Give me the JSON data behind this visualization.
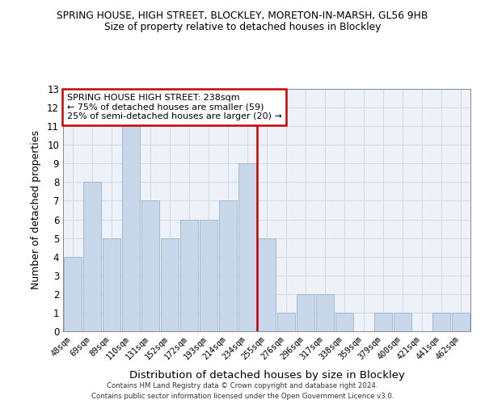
{
  "title_line1": "SPRING HOUSE, HIGH STREET, BLOCKLEY, MORETON-IN-MARSH, GL56 9HB",
  "title_line2": "Size of property relative to detached houses in Blockley",
  "xlabel": "Distribution of detached houses by size in Blockley",
  "ylabel": "Number of detached properties",
  "bar_labels": [
    "48sqm",
    "69sqm",
    "89sqm",
    "110sqm",
    "131sqm",
    "152sqm",
    "172sqm",
    "193sqm",
    "214sqm",
    "234sqm",
    "255sqm",
    "276sqm",
    "296sqm",
    "317sqm",
    "338sqm",
    "359sqm",
    "379sqm",
    "400sqm",
    "421sqm",
    "441sqm",
    "462sqm"
  ],
  "bar_values": [
    4,
    8,
    5,
    11,
    7,
    5,
    6,
    6,
    7,
    9,
    5,
    1,
    2,
    2,
    1,
    0,
    1,
    1,
    0,
    1,
    1
  ],
  "bar_color": "#c8d8ea",
  "bar_edge_color": "#a0bcd0",
  "bar_edge_width": 0.7,
  "vline_x": 9.5,
  "vline_color": "#cc0000",
  "ylim": [
    0,
    13
  ],
  "yticks": [
    0,
    1,
    2,
    3,
    4,
    5,
    6,
    7,
    8,
    9,
    10,
    11,
    12,
    13
  ],
  "annotation_title": "SPRING HOUSE HIGH STREET: 238sqm",
  "annotation_line1": "← 75% of detached houses are smaller (59)",
  "annotation_line2": "25% of semi-detached houses are larger (20) →",
  "annotation_box_color": "#ffffff",
  "annotation_box_edge_color": "#cc0000",
  "grid_color": "#d0dce8",
  "background_color": "#eef2f8",
  "fig_background": "#ffffff",
  "footnote1": "Contains HM Land Registry data © Crown copyright and database right 2024.",
  "footnote2": "Contains public sector information licensed under the Open Government Licence v3.0."
}
